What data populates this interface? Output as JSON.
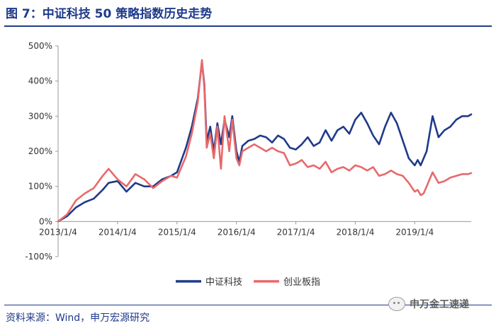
{
  "header": {
    "title": "图 7：中证科技 50 策略指数历史走势"
  },
  "footer": {
    "source": "资料来源：Wind，申万宏源研究"
  },
  "watermark": {
    "label": "申万金工速递",
    "icon": "wechat-icon"
  },
  "chart_data": {
    "type": "line",
    "title": "图 7：中证科技 50 策略指数历史走势",
    "xlabel": "",
    "ylabel": "",
    "xlim": [
      2013.0,
      2019.95
    ],
    "ylim": [
      -100,
      500
    ],
    "y_ticks": [
      500,
      400,
      300,
      200,
      100,
      0,
      -100
    ],
    "y_tick_labels": [
      "500%",
      "400%",
      "300%",
      "200%",
      "100%",
      "0%",
      "-100%"
    ],
    "x_ticks": [
      2013.0,
      2014.0,
      2015.0,
      2016.0,
      2017.0,
      2018.0,
      2019.0
    ],
    "x_tick_labels": [
      "2013/1/4",
      "2014/1/4",
      "2015/1/4",
      "2016/1/4",
      "2017/1/4",
      "2018/1/4",
      "2019/1/4"
    ],
    "grid": false,
    "legend_position": "bottom-right",
    "series": [
      {
        "name": "中证科技",
        "color": "#1f3a8a",
        "x": [
          2013.0,
          2013.15,
          2013.3,
          2013.45,
          2013.6,
          2013.75,
          2013.85,
          2014.0,
          2014.15,
          2014.3,
          2014.45,
          2014.6,
          2014.75,
          2014.9,
          2015.0,
          2015.15,
          2015.25,
          2015.35,
          2015.42,
          2015.46,
          2015.5,
          2015.56,
          2015.62,
          2015.68,
          2015.74,
          2015.8,
          2015.88,
          2015.93,
          2016.0,
          2016.05,
          2016.1,
          2016.2,
          2016.3,
          2016.4,
          2016.5,
          2016.6,
          2016.7,
          2016.8,
          2016.9,
          2017.0,
          2017.1,
          2017.2,
          2017.3,
          2017.4,
          2017.5,
          2017.6,
          2017.7,
          2017.8,
          2017.9,
          2018.0,
          2018.1,
          2018.2,
          2018.3,
          2018.4,
          2018.5,
          2018.6,
          2018.7,
          2018.8,
          2018.9,
          2019.0,
          2019.05,
          2019.1,
          2019.15,
          2019.2,
          2019.3,
          2019.4,
          2019.5,
          2019.6,
          2019.7,
          2019.8,
          2019.9,
          2019.95
        ],
        "values": [
          0,
          15,
          40,
          55,
          65,
          90,
          110,
          115,
          85,
          110,
          100,
          100,
          120,
          130,
          140,
          210,
          270,
          350,
          455,
          390,
          230,
          270,
          200,
          280,
          220,
          290,
          240,
          300,
          200,
          170,
          215,
          230,
          235,
          245,
          240,
          225,
          245,
          235,
          210,
          205,
          220,
          240,
          215,
          225,
          260,
          230,
          260,
          270,
          250,
          290,
          310,
          280,
          245,
          220,
          270,
          310,
          280,
          230,
          180,
          160,
          175,
          160,
          180,
          200,
          300,
          240,
          260,
          270,
          290,
          300,
          300,
          305
        ]
      },
      {
        "name": "创业板指",
        "color": "#e8696b",
        "x": [
          2013.0,
          2013.15,
          2013.3,
          2013.45,
          2013.6,
          2013.75,
          2013.85,
          2014.0,
          2014.15,
          2014.3,
          2014.45,
          2014.6,
          2014.75,
          2014.9,
          2015.0,
          2015.15,
          2015.25,
          2015.35,
          2015.42,
          2015.46,
          2015.5,
          2015.56,
          2015.62,
          2015.68,
          2015.74,
          2015.8,
          2015.88,
          2015.93,
          2016.0,
          2016.05,
          2016.1,
          2016.2,
          2016.3,
          2016.4,
          2016.5,
          2016.6,
          2016.7,
          2016.8,
          2016.9,
          2017.0,
          2017.1,
          2017.2,
          2017.3,
          2017.4,
          2017.5,
          2017.6,
          2017.7,
          2017.8,
          2017.9,
          2018.0,
          2018.1,
          2018.2,
          2018.3,
          2018.4,
          2018.5,
          2018.6,
          2018.7,
          2018.8,
          2018.9,
          2019.0,
          2019.05,
          2019.1,
          2019.15,
          2019.2,
          2019.3,
          2019.4,
          2019.5,
          2019.6,
          2019.7,
          2019.8,
          2019.9,
          2019.95
        ],
        "values": [
          0,
          20,
          60,
          80,
          95,
          130,
          150,
          120,
          100,
          135,
          120,
          95,
          115,
          130,
          125,
          185,
          250,
          340,
          460,
          380,
          210,
          250,
          180,
          270,
          150,
          300,
          200,
          290,
          180,
          160,
          200,
          210,
          220,
          210,
          200,
          210,
          200,
          195,
          160,
          165,
          175,
          155,
          160,
          150,
          170,
          140,
          150,
          155,
          145,
          160,
          155,
          145,
          155,
          130,
          135,
          145,
          135,
          130,
          110,
          85,
          90,
          75,
          80,
          100,
          140,
          110,
          115,
          125,
          130,
          135,
          135,
          138
        ]
      }
    ]
  }
}
